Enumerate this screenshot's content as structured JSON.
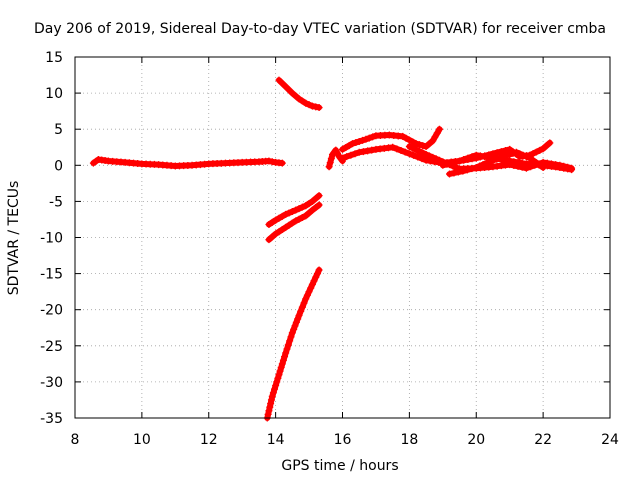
{
  "chart_data": {
    "type": "scatter",
    "title": "Day 206 of 2019, Sidereal Day-to-day VTEC variation (SDTVAR) for receiver cmba",
    "xlabel": "GPS time / hours",
    "ylabel": "SDTVAR / TECUs",
    "xlim": [
      8,
      24
    ],
    "ylim": [
      -35,
      15
    ],
    "xticks": [
      "8",
      "10",
      "12",
      "14",
      "16",
      "18",
      "20",
      "22",
      "24"
    ],
    "yticks": [
      "15",
      "10",
      "5",
      "0",
      "-5",
      "-10",
      "-15",
      "-20",
      "-25",
      "-30",
      "-35"
    ],
    "grid": true,
    "color": "#ff0000",
    "series": [
      {
        "x": [
          8.55,
          8.7,
          9.0,
          9.5,
          10.0,
          10.5,
          11.0,
          11.5,
          12.0,
          12.5,
          13.0,
          13.5,
          13.8,
          14.0,
          14.2
        ],
        "y": [
          0.3,
          0.8,
          0.6,
          0.4,
          0.2,
          0.1,
          -0.1,
          0.0,
          0.2,
          0.3,
          0.4,
          0.5,
          0.6,
          0.4,
          0.3
        ]
      },
      {
        "x": [
          14.1,
          14.3,
          14.5,
          14.7,
          14.9,
          15.1,
          15.3
        ],
        "y": [
          11.8,
          10.9,
          10.0,
          9.2,
          8.6,
          8.2,
          8.0
        ]
      },
      {
        "x": [
          13.8,
          14.0,
          14.3,
          14.6,
          14.9,
          15.1,
          15.3
        ],
        "y": [
          -8.2,
          -7.6,
          -6.8,
          -6.2,
          -5.6,
          -5.0,
          -4.2
        ]
      },
      {
        "x": [
          13.8,
          14.0,
          14.3,
          14.6,
          14.9,
          15.1,
          15.3
        ],
        "y": [
          -10.3,
          -9.5,
          -8.6,
          -7.7,
          -7.0,
          -6.2,
          -5.5
        ]
      },
      {
        "x": [
          13.75,
          13.9,
          14.1,
          14.3,
          14.5,
          14.7,
          14.9,
          15.1,
          15.3
        ],
        "y": [
          -35.0,
          -32.0,
          -29.0,
          -26.0,
          -23.2,
          -20.8,
          -18.5,
          -16.5,
          -14.5
        ]
      },
      {
        "x": [
          15.6,
          15.7,
          15.8,
          15.9,
          16.0
        ],
        "y": [
          -0.2,
          1.5,
          2.1,
          1.2,
          0.6
        ]
      },
      {
        "x": [
          16.0,
          16.3,
          16.7,
          17.0,
          17.4,
          17.8,
          18.2,
          18.5,
          18.7,
          18.9
        ],
        "y": [
          2.2,
          3.0,
          3.6,
          4.1,
          4.2,
          4.0,
          3.0,
          2.6,
          3.4,
          5.0
        ]
      },
      {
        "x": [
          16.0,
          16.5,
          17.0,
          17.5,
          18.0,
          18.5,
          19.0,
          19.5,
          20.0,
          20.5,
          21.0,
          21.3,
          21.6,
          22.0,
          22.2
        ],
        "y": [
          1.0,
          1.8,
          2.2,
          2.5,
          1.6,
          0.7,
          0.3,
          0.6,
          1.0,
          1.6,
          2.2,
          1.2,
          1.4,
          2.3,
          3.1
        ]
      },
      {
        "x": [
          18.0,
          18.5,
          19.0,
          19.5,
          20.0,
          20.5,
          21.0,
          21.5,
          22.0,
          22.5,
          22.85
        ],
        "y": [
          2.6,
          1.5,
          0.5,
          -0.5,
          -0.4,
          -0.2,
          0.1,
          -0.4,
          0.4,
          0.0,
          -0.4
        ]
      },
      {
        "x": [
          19.0,
          19.5,
          20.0,
          20.5,
          21.0,
          21.5,
          22.0,
          22.5,
          22.85
        ],
        "y": [
          0.0,
          0.6,
          1.4,
          1.0,
          0.6,
          0.2,
          0.0,
          -0.3,
          -0.6
        ]
      },
      {
        "x": [
          19.2,
          19.6,
          20.0,
          20.4,
          20.8,
          21.2,
          21.6,
          22.0
        ],
        "y": [
          -1.2,
          -0.8,
          -0.3,
          0.5,
          1.2,
          1.8,
          1.0,
          -0.3
        ]
      }
    ]
  }
}
